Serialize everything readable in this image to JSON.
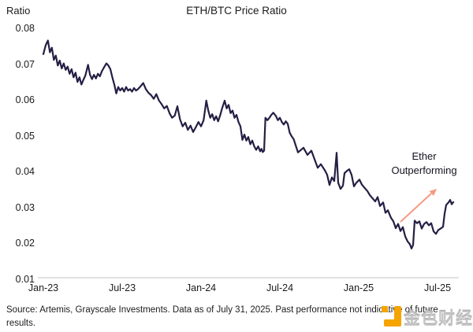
{
  "chart_data": {
    "type": "line",
    "title": "ETH/BTC Price Ratio",
    "y_axis_label": "Ratio",
    "x_tick_labels": [
      "Jan-23",
      "Jul-23",
      "Jan-24",
      "Jul-24",
      "Jan-25",
      "Jul-25"
    ],
    "x_tick_months": [
      0,
      6,
      12,
      18,
      24,
      30
    ],
    "y_tick_labels": [
      "0.08",
      "0.07",
      "0.06",
      "0.05",
      "0.04",
      "0.03",
      "0.02",
      "0.01"
    ],
    "y_tick_values": [
      0.08,
      0.07,
      0.06,
      0.05,
      0.04,
      0.03,
      0.02,
      0.01
    ],
    "ylim": [
      0.01,
      0.08
    ],
    "xlim_months": [
      0,
      31.6
    ],
    "x_unit": "months since Jan-2023, data through Jul 31 2025",
    "grid": "off",
    "legend": "none",
    "line_color": "#251e44",
    "axis_line_color": "#d9d9d9",
    "annotation": {
      "line1": "Ether",
      "line2": "Outperforming",
      "arrow_color": "#f49a84"
    },
    "series": [
      {
        "name": "ETH/BTC Price Ratio",
        "x_months": [
          0.0,
          0.18,
          0.35,
          0.5,
          0.65,
          0.8,
          0.95,
          1.1,
          1.25,
          1.4,
          1.55,
          1.7,
          1.85,
          2.0,
          2.15,
          2.3,
          2.45,
          2.6,
          2.75,
          2.9,
          3.05,
          3.2,
          3.4,
          3.55,
          3.7,
          3.85,
          4.0,
          4.15,
          4.3,
          4.45,
          4.6,
          4.8,
          4.95,
          5.1,
          5.25,
          5.4,
          5.55,
          5.7,
          5.85,
          6.0,
          6.15,
          6.3,
          6.45,
          6.6,
          6.75,
          6.9,
          7.05,
          7.2,
          7.4,
          7.6,
          7.8,
          8.0,
          8.2,
          8.4,
          8.6,
          8.8,
          9.0,
          9.2,
          9.4,
          9.6,
          9.8,
          10.0,
          10.2,
          10.4,
          10.6,
          10.8,
          11.0,
          11.2,
          11.4,
          11.6,
          11.8,
          12.0,
          12.2,
          12.4,
          12.55,
          12.7,
          12.85,
          13.0,
          13.15,
          13.3,
          13.45,
          13.6,
          13.8,
          13.95,
          14.1,
          14.25,
          14.4,
          14.55,
          14.7,
          14.85,
          15.0,
          15.15,
          15.3,
          15.45,
          15.6,
          15.75,
          15.9,
          16.05,
          16.2,
          16.35,
          16.5,
          16.6,
          16.7,
          16.8,
          16.9,
          17.05,
          17.2,
          17.35,
          17.5,
          17.7,
          17.85,
          18.0,
          18.15,
          18.3,
          18.45,
          18.6,
          18.75,
          18.9,
          19.05,
          19.38,
          19.8,
          20.1,
          20.4,
          20.7,
          20.88,
          21.12,
          21.42,
          21.6,
          21.78,
          21.96,
          22.14,
          22.32,
          22.44,
          22.62,
          22.8,
          22.92,
          23.1,
          23.28,
          23.46,
          23.64,
          23.82,
          24.06,
          24.24,
          24.42,
          24.66,
          24.84,
          25.02,
          25.26,
          25.44,
          25.62,
          25.86,
          26.04,
          26.22,
          26.46,
          26.64,
          26.82,
          27.0,
          27.18,
          27.36,
          27.54,
          27.72,
          27.9,
          28.02,
          28.14,
          28.26,
          28.44,
          28.62,
          28.8,
          28.98,
          29.16,
          29.34,
          29.52,
          29.7,
          29.88,
          30.06,
          30.24,
          30.42,
          30.54,
          30.66,
          30.84,
          30.96,
          31.08,
          31.2
        ],
        "values": [
          0.073,
          0.0755,
          0.0768,
          0.0735,
          0.0748,
          0.0714,
          0.0726,
          0.0698,
          0.0712,
          0.069,
          0.0704,
          0.0686,
          0.0695,
          0.0675,
          0.0688,
          0.0665,
          0.0678,
          0.0652,
          0.0665,
          0.0645,
          0.0658,
          0.067,
          0.07,
          0.0672,
          0.066,
          0.0672,
          0.0662,
          0.0675,
          0.0668,
          0.0682,
          0.0692,
          0.0704,
          0.0698,
          0.0688,
          0.0665,
          0.0645,
          0.062,
          0.0638,
          0.0628,
          0.0635,
          0.0625,
          0.0638,
          0.0628,
          0.0632,
          0.0625,
          0.0635,
          0.0628,
          0.0632,
          0.064,
          0.0649,
          0.0632,
          0.0622,
          0.0615,
          0.0605,
          0.0618,
          0.06,
          0.059,
          0.0578,
          0.0585,
          0.0565,
          0.0552,
          0.0558,
          0.0584,
          0.0548,
          0.0528,
          0.0538,
          0.0518,
          0.053,
          0.0512,
          0.0525,
          0.054,
          0.0528,
          0.0545,
          0.06,
          0.0572,
          0.0552,
          0.0562,
          0.0545,
          0.0556,
          0.0542,
          0.0558,
          0.0578,
          0.06,
          0.0578,
          0.0588,
          0.0565,
          0.0572,
          0.0552,
          0.056,
          0.054,
          0.0528,
          0.049,
          0.0505,
          0.0488,
          0.0498,
          0.0478,
          0.0488,
          0.0472,
          0.0462,
          0.0472,
          0.0458,
          0.0465,
          0.0456,
          0.046,
          0.0552,
          0.0545,
          0.0552,
          0.056,
          0.0566,
          0.0557,
          0.0545,
          0.0552,
          0.054,
          0.0533,
          0.0542,
          0.0535,
          0.051,
          0.05,
          0.0492,
          0.0455,
          0.0468,
          0.0448,
          0.046,
          0.043,
          0.0412,
          0.0422,
          0.0405,
          0.0392,
          0.0364,
          0.0385,
          0.0375,
          0.0454,
          0.037,
          0.0353,
          0.0362,
          0.0397,
          0.0403,
          0.0408,
          0.0392,
          0.036,
          0.037,
          0.0379,
          0.0365,
          0.0357,
          0.0347,
          0.0336,
          0.0328,
          0.0318,
          0.033,
          0.0305,
          0.0315,
          0.0286,
          0.0293,
          0.0272,
          0.0262,
          0.0243,
          0.0255,
          0.0235,
          0.0246,
          0.022,
          0.0206,
          0.0198,
          0.0186,
          0.0196,
          0.0264,
          0.0257,
          0.0262,
          0.0242,
          0.0255,
          0.026,
          0.0251,
          0.0257,
          0.0234,
          0.0227,
          0.0238,
          0.0242,
          0.0247,
          0.0284,
          0.0308,
          0.0315,
          0.0322,
          0.031,
          0.0316
        ]
      }
    ]
  },
  "footer": {
    "lines": [
      "Source: Artemis, Grayscale Investments. Data as of July 31, 2025. Past performance not indicative of future",
      "results."
    ]
  },
  "watermark": {
    "text": "金色财经",
    "logo_color": "#f5a402"
  }
}
